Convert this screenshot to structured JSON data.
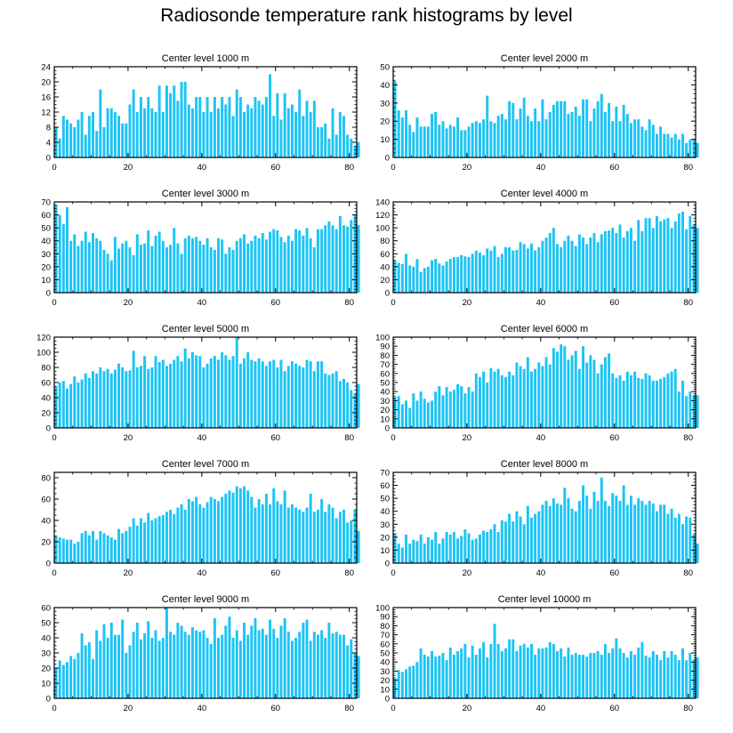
{
  "title": "Radiosonde temperature rank histograms by level",
  "bar_color": "#1cc4f5",
  "chart_data": [
    {
      "type": "bar",
      "title": "Center level 1000 m",
      "ylim": [
        0,
        24
      ],
      "yticks": [
        0,
        4,
        8,
        12,
        16,
        20,
        24
      ],
      "xticks": [
        0,
        20,
        40,
        60,
        80
      ],
      "xlim": [
        0,
        82
      ],
      "values": [
        8,
        5,
        11,
        10,
        9,
        8,
        10,
        12,
        6,
        11,
        12,
        7,
        18,
        8,
        13,
        13,
        12,
        11,
        9,
        9,
        14,
        18,
        12,
        16,
        13,
        16,
        13,
        12,
        19,
        12,
        19,
        17,
        19,
        15,
        20,
        20,
        14,
        13,
        16,
        16,
        12,
        16,
        12,
        16,
        13,
        16,
        14,
        16,
        11,
        18,
        16,
        12,
        14,
        13,
        16,
        15,
        14,
        16,
        22,
        11,
        17,
        10,
        17,
        13,
        14,
        12,
        18,
        11,
        15,
        12,
        15,
        8,
        8,
        9,
        5,
        13,
        6,
        12,
        11,
        6,
        5,
        3,
        4
      ]
    },
    {
      "type": "bar",
      "title": "Center level 2000 m",
      "ylim": [
        0,
        50
      ],
      "yticks": [
        0,
        10,
        20,
        30,
        40,
        50
      ],
      "xticks": [
        0,
        20,
        40,
        60,
        80
      ],
      "xlim": [
        0,
        82
      ],
      "values": [
        42,
        26,
        22,
        26,
        18,
        14,
        22,
        17,
        17,
        17,
        24,
        25,
        18,
        20,
        16,
        18,
        17,
        22,
        15,
        15,
        17,
        19,
        20,
        19,
        21,
        34,
        20,
        19,
        23,
        24,
        21,
        31,
        30,
        21,
        27,
        33,
        23,
        20,
        27,
        20,
        32,
        21,
        25,
        29,
        31,
        31,
        31,
        24,
        25,
        28,
        23,
        32,
        32,
        20,
        27,
        31,
        35,
        25,
        30,
        20,
        28,
        20,
        29,
        24,
        19,
        21,
        21,
        17,
        15,
        21,
        18,
        13,
        17,
        13,
        13,
        11,
        13,
        10,
        13,
        8,
        10,
        10,
        8
      ]
    },
    {
      "type": "bar",
      "title": "Center level 3000 m",
      "ylim": [
        0,
        70
      ],
      "yticks": [
        0,
        10,
        20,
        30,
        40,
        50,
        60,
        70
      ],
      "xticks": [
        0,
        20,
        40,
        60,
        80
      ],
      "xlim": [
        0,
        82
      ],
      "values": [
        68,
        60,
        53,
        66,
        40,
        45,
        36,
        40,
        47,
        39,
        46,
        42,
        40,
        33,
        30,
        25,
        43,
        34,
        38,
        40,
        35,
        29,
        45,
        37,
        38,
        48,
        36,
        44,
        47,
        40,
        35,
        37,
        50,
        38,
        30,
        42,
        44,
        42,
        43,
        40,
        37,
        42,
        35,
        33,
        42,
        41,
        30,
        35,
        33,
        40,
        42,
        45,
        38,
        40,
        44,
        42,
        46,
        41,
        47,
        49,
        48,
        43,
        39,
        44,
        40,
        49,
        48,
        44,
        50,
        42,
        35,
        49,
        49,
        52,
        55,
        52,
        49,
        59,
        52,
        51,
        56,
        60,
        52
      ]
    },
    {
      "type": "bar",
      "title": "Center level 4000 m",
      "ylim": [
        0,
        140
      ],
      "yticks": [
        0,
        20,
        40,
        60,
        80,
        100,
        120,
        140
      ],
      "xticks": [
        0,
        20,
        40,
        60,
        80
      ],
      "xlim": [
        0,
        82
      ],
      "values": [
        50,
        46,
        44,
        60,
        42,
        40,
        52,
        32,
        38,
        40,
        50,
        52,
        45,
        42,
        48,
        52,
        55,
        55,
        58,
        56,
        55,
        60,
        65,
        62,
        58,
        68,
        65,
        72,
        55,
        60,
        70,
        70,
        65,
        66,
        78,
        75,
        68,
        76,
        65,
        70,
        80,
        85,
        92,
        100,
        75,
        70,
        80,
        88,
        80,
        72,
        90,
        85,
        75,
        85,
        92,
        78,
        90,
        95,
        96,
        100,
        92,
        105,
        85,
        95,
        100,
        80,
        112,
        95,
        115,
        115,
        100,
        118,
        110,
        113,
        115,
        100,
        110,
        122,
        125,
        98,
        118,
        105,
        100
      ]
    },
    {
      "type": "bar",
      "title": "Center level 5000 m",
      "ylim": [
        0,
        120
      ],
      "yticks": [
        0,
        20,
        40,
        60,
        80,
        100,
        120
      ],
      "xticks": [
        0,
        20,
        40,
        60,
        80
      ],
      "xlim": [
        0,
        82
      ],
      "values": [
        55,
        60,
        62,
        52,
        58,
        68,
        60,
        64,
        72,
        66,
        75,
        72,
        80,
        75,
        78,
        72,
        77,
        85,
        80,
        75,
        76,
        102,
        80,
        82,
        95,
        78,
        80,
        95,
        87,
        90,
        82,
        85,
        90,
        95,
        88,
        105,
        92,
        100,
        96,
        95,
        80,
        85,
        92,
        95,
        90,
        100,
        96,
        90,
        95,
        120,
        85,
        92,
        100,
        90,
        88,
        92,
        88,
        82,
        88,
        90,
        80,
        90,
        75,
        82,
        88,
        85,
        82,
        80,
        90,
        88,
        75,
        88,
        88,
        72,
        70,
        72,
        75,
        62,
        65,
        60,
        50,
        45,
        58
      ]
    },
    {
      "type": "bar",
      "title": "Center level 6000 m",
      "ylim": [
        0,
        100
      ],
      "yticks": [
        0,
        10,
        20,
        30,
        40,
        50,
        60,
        70,
        80,
        90,
        100
      ],
      "xticks": [
        0,
        20,
        40,
        60,
        80
      ],
      "xlim": [
        0,
        82
      ],
      "values": [
        34,
        35,
        26,
        30,
        22,
        38,
        30,
        40,
        32,
        28,
        30,
        40,
        46,
        36,
        45,
        40,
        42,
        48,
        46,
        38,
        45,
        40,
        60,
        56,
        62,
        50,
        66,
        62,
        65,
        58,
        56,
        62,
        58,
        72,
        68,
        65,
        78,
        62,
        65,
        72,
        68,
        78,
        70,
        88,
        84,
        92,
        90,
        75,
        80,
        85,
        65,
        90,
        72,
        80,
        75,
        60,
        70,
        78,
        82,
        60,
        55,
        58,
        52,
        62,
        58,
        62,
        55,
        54,
        60,
        58,
        52,
        52,
        54,
        56,
        60,
        62,
        65,
        40,
        52,
        35,
        40,
        36,
        36
      ]
    },
    {
      "type": "bar",
      "title": "Center level 7000 m",
      "ylim": [
        0,
        85
      ],
      "yticks": [
        0,
        20,
        40,
        60,
        80
      ],
      "xticks": [
        0,
        20,
        40,
        60,
        80
      ],
      "xlim": [
        0,
        82
      ],
      "values": [
        26,
        24,
        23,
        22,
        22,
        18,
        20,
        28,
        30,
        26,
        30,
        22,
        30,
        28,
        26,
        24,
        22,
        32,
        28,
        30,
        34,
        42,
        35,
        42,
        38,
        47,
        40,
        42,
        44,
        45,
        48,
        50,
        46,
        52,
        55,
        50,
        60,
        58,
        62,
        55,
        52,
        57,
        62,
        60,
        58,
        62,
        65,
        68,
        66,
        72,
        70,
        72,
        68,
        62,
        52,
        60,
        55,
        65,
        55,
        70,
        58,
        55,
        68,
        52,
        55,
        52,
        50,
        48,
        52,
        65,
        48,
        50,
        60,
        48,
        55,
        52,
        42,
        48,
        50,
        38,
        40,
        50,
        30
      ]
    },
    {
      "type": "bar",
      "title": "Center level 8000 m",
      "ylim": [
        0,
        70
      ],
      "yticks": [
        0,
        10,
        20,
        30,
        40,
        50,
        60,
        70
      ],
      "xticks": [
        0,
        20,
        40,
        60,
        80
      ],
      "xlim": [
        0,
        82
      ],
      "values": [
        23,
        15,
        12,
        22,
        15,
        18,
        17,
        22,
        15,
        20,
        18,
        24,
        15,
        19,
        24,
        22,
        24,
        19,
        21,
        26,
        23,
        18,
        19,
        22,
        25,
        24,
        26,
        30,
        24,
        33,
        32,
        38,
        32,
        40,
        36,
        30,
        44,
        35,
        38,
        40,
        45,
        48,
        44,
        50,
        46,
        45,
        58,
        50,
        42,
        40,
        48,
        60,
        52,
        42,
        55,
        48,
        66,
        48,
        44,
        54,
        52,
        48,
        60,
        45,
        52,
        45,
        50,
        48,
        45,
        48,
        46,
        40,
        45,
        45,
        38,
        42,
        35,
        38,
        30,
        36,
        35,
        22,
        15
      ]
    },
    {
      "type": "bar",
      "title": "Center level 9000 m",
      "ylim": [
        0,
        60
      ],
      "yticks": [
        0,
        10,
        20,
        30,
        40,
        50,
        60
      ],
      "xticks": [
        0,
        20,
        40,
        60,
        80
      ],
      "xlim": [
        0,
        82
      ],
      "values": [
        20,
        25,
        22,
        24,
        28,
        26,
        30,
        43,
        35,
        37,
        26,
        45,
        38,
        49,
        40,
        50,
        42,
        42,
        52,
        30,
        35,
        44,
        50,
        39,
        43,
        51,
        40,
        45,
        38,
        40,
        60,
        44,
        42,
        50,
        48,
        44,
        42,
        47,
        45,
        44,
        45,
        40,
        36,
        53,
        40,
        42,
        48,
        54,
        40,
        45,
        38,
        50,
        42,
        48,
        53,
        45,
        46,
        42,
        52,
        46,
        40,
        48,
        53,
        44,
        38,
        40,
        44,
        50,
        52,
        38,
        44,
        42,
        45,
        40,
        50,
        43,
        44,
        42,
        42,
        35,
        39,
        30,
        28
      ]
    },
    {
      "type": "bar",
      "title": "Center level 10000 m",
      "ylim": [
        0,
        100
      ],
      "yticks": [
        0,
        10,
        20,
        30,
        40,
        50,
        60,
        70,
        80,
        90,
        100
      ],
      "xticks": [
        0,
        20,
        40,
        60,
        80
      ],
      "xlim": [
        0,
        82
      ],
      "values": [
        22,
        31,
        29,
        32,
        35,
        36,
        40,
        55,
        48,
        46,
        52,
        46,
        47,
        50,
        42,
        56,
        48,
        52,
        55,
        60,
        45,
        58,
        48,
        55,
        62,
        45,
        60,
        82,
        60,
        52,
        55,
        65,
        65,
        52,
        58,
        60,
        56,
        60,
        48,
        55,
        55,
        56,
        62,
        60,
        52,
        55,
        46,
        56,
        48,
        50,
        48,
        48,
        46,
        50,
        50,
        52,
        48,
        60,
        50,
        55,
        66,
        55,
        50,
        45,
        52,
        48,
        56,
        62,
        47,
        45,
        52,
        48,
        42,
        52,
        45,
        52,
        48,
        42,
        55,
        42,
        50,
        42,
        45
      ]
    }
  ]
}
